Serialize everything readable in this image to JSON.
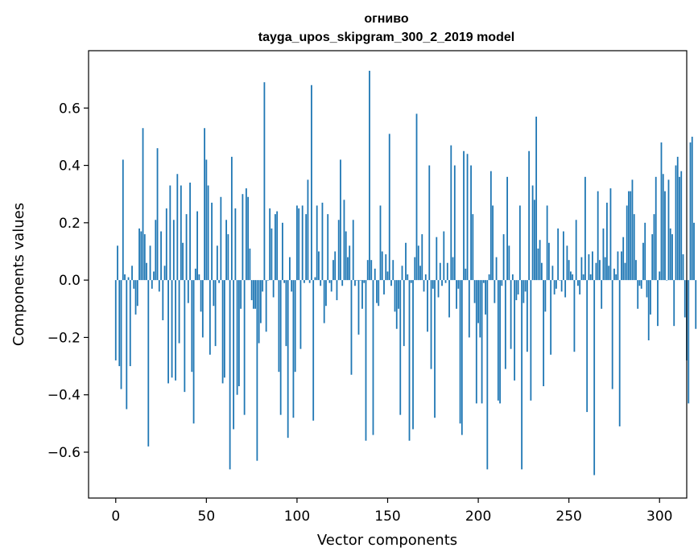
{
  "chart_data": {
    "type": "bar",
    "title_line1": "огниво",
    "title_line2": "tayga_upos_skipgram_300_2_2019 model",
    "xlabel": "Vector components",
    "ylabel": "Components values",
    "xlim": [
      -15,
      315
    ],
    "ylim": [
      -0.76,
      0.8
    ],
    "xticks": [
      0,
      50,
      100,
      150,
      200,
      250,
      300
    ],
    "xtick_labels": [
      "0",
      "50",
      "100",
      "150",
      "200",
      "250",
      "300"
    ],
    "yticks": [
      -0.6,
      -0.4,
      -0.2,
      0.0,
      0.2,
      0.4,
      0.6
    ],
    "ytick_labels": [
      "−0.6",
      "−0.4",
      "−0.2",
      "0.0",
      "0.2",
      "0.4",
      "0.6"
    ],
    "bar_color": "#1f77b4",
    "values": [
      -0.28,
      0.12,
      -0.3,
      -0.38,
      0.42,
      0.02,
      -0.45,
      0.01,
      -0.3,
      0.05,
      -0.03,
      -0.12,
      -0.09,
      0.18,
      0.17,
      0.53,
      0.16,
      0.06,
      -0.58,
      0.12,
      -0.03,
      0.03,
      0.21,
      0.46,
      -0.04,
      0.17,
      -0.14,
      0.05,
      0.25,
      -0.36,
      0.33,
      -0.34,
      0.21,
      -0.35,
      0.37,
      -0.22,
      0.33,
      0.13,
      -0.39,
      0.23,
      -0.08,
      0.34,
      -0.32,
      -0.5,
      0.04,
      0.24,
      0.02,
      -0.11,
      -0.2,
      0.53,
      0.42,
      0.33,
      -0.26,
      0.27,
      -0.09,
      -0.23,
      0.12,
      -0.01,
      0.29,
      -0.36,
      -0.34,
      0.21,
      0.16,
      -0.66,
      0.43,
      -0.52,
      0.25,
      -0.4,
      -0.37,
      -0.1,
      0.3,
      -0.47,
      0.32,
      0.29,
      0.11,
      -0.07,
      -0.1,
      -0.1,
      -0.63,
      -0.22,
      -0.15,
      -0.04,
      0.69,
      -0.18,
      0.0,
      0.25,
      0.18,
      -0.06,
      0.23,
      0.24,
      -0.32,
      -0.47,
      0.2,
      -0.01,
      -0.23,
      -0.55,
      0.08,
      -0.04,
      -0.48,
      -0.32,
      0.26,
      0.25,
      -0.24,
      0.26,
      -0.01,
      0.23,
      0.35,
      -0.01,
      0.68,
      -0.49,
      0.01,
      0.26,
      0.1,
      -0.02,
      0.27,
      -0.15,
      -0.09,
      0.23,
      -0.01,
      -0.04,
      0.07,
      0.1,
      -0.07,
      0.21,
      0.42,
      -0.02,
      0.28,
      0.17,
      0.08,
      0.12,
      -0.33,
      0.21,
      -0.02,
      0.0,
      -0.19,
      0.0,
      -0.1,
      -0.01,
      -0.56,
      0.07,
      0.73,
      0.07,
      -0.54,
      0.04,
      -0.08,
      -0.09,
      0.26,
      0.1,
      -0.05,
      0.09,
      0.03,
      0.51,
      -0.02,
      0.07,
      -0.11,
      -0.17,
      -0.1,
      -0.47,
      0.05,
      -0.23,
      0.13,
      0.02,
      -0.56,
      -0.01,
      -0.52,
      0.08,
      0.58,
      0.12,
      0.05,
      0.16,
      -0.04,
      0.02,
      -0.18,
      0.4,
      -0.31,
      -0.03,
      -0.48,
      0.15,
      -0.06,
      0.06,
      -0.02,
      0.17,
      -0.01,
      0.06,
      -0.13,
      0.47,
      0.08,
      0.4,
      -0.1,
      -0.03,
      -0.5,
      -0.54,
      0.45,
      0.04,
      0.44,
      -0.2,
      0.4,
      0.23,
      -0.08,
      -0.43,
      -0.15,
      -0.2,
      -0.43,
      -0.01,
      -0.12,
      -0.66,
      0.02,
      0.38,
      0.26,
      -0.08,
      0.08,
      -0.42,
      -0.43,
      -0.02,
      0.16,
      -0.31,
      0.36,
      0.12,
      -0.24,
      0.02,
      -0.35,
      -0.07,
      -0.05,
      0.26,
      -0.66,
      -0.08,
      -0.04,
      -0.25,
      0.45,
      -0.42,
      0.33,
      0.28,
      0.57,
      0.11,
      0.14,
      0.06,
      -0.37,
      -0.11,
      0.26,
      0.13,
      -0.26,
      0.05,
      -0.05,
      -0.03,
      0.18,
      0.0,
      -0.04,
      0.17,
      -0.06,
      0.12,
      0.07,
      0.03,
      0.02,
      -0.25,
      0.21,
      -0.02,
      -0.05,
      0.08,
      0.02,
      0.36,
      -0.46,
      0.09,
      0.02,
      0.1,
      -0.68,
      0.06,
      0.31,
      0.07,
      -0.1,
      0.18,
      0.08,
      0.27,
      0.05,
      0.32,
      -0.38,
      0.04,
      0.02,
      0.1,
      -0.51,
      0.1,
      0.15,
      0.06,
      0.26,
      0.31,
      0.31,
      0.35,
      0.23,
      0.07,
      -0.1,
      -0.02,
      -0.03,
      0.13,
      0.2,
      -0.06,
      -0.21,
      -0.12,
      0.16,
      0.23,
      0.36,
      -0.16,
      0.03,
      0.48,
      0.37,
      0.31,
      0.0,
      0.35,
      0.18,
      0.16,
      -0.16,
      0.4,
      0.43,
      0.36,
      0.38,
      0.09,
      -0.13,
      -0.28,
      -0.43,
      0.48,
      0.5,
      0.2,
      -0.17
    ]
  }
}
